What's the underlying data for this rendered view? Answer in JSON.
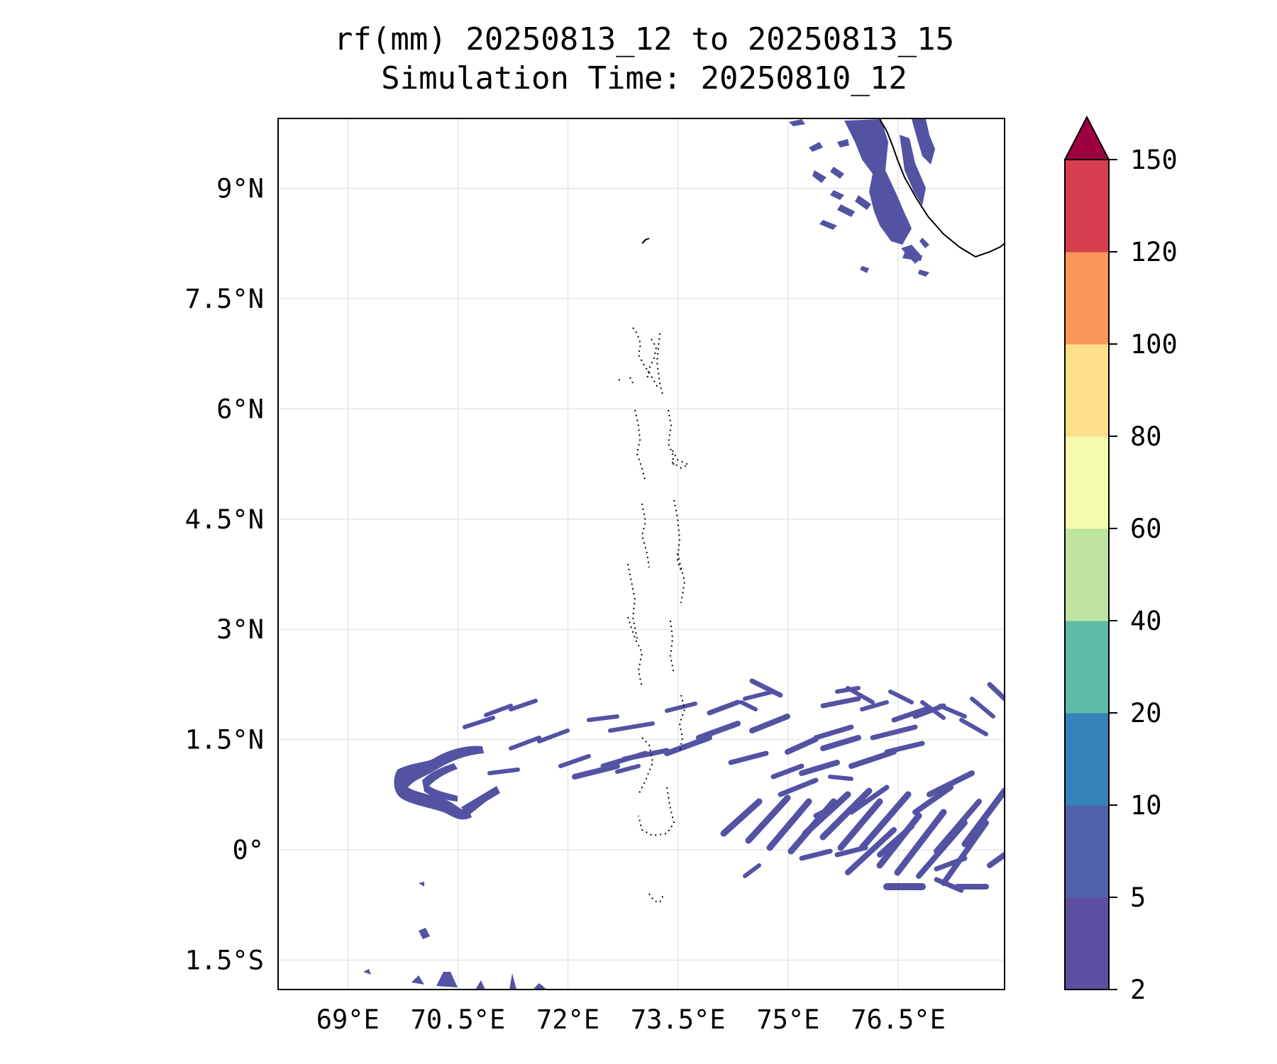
{
  "title": {
    "line1": "rf(mm) 20250813_12 to 20250813_15",
    "line2": "Simulation Time: 20250810_12"
  },
  "axes": {
    "x_ticks": [
      {
        "value": 69.0,
        "label": "69°E"
      },
      {
        "value": 70.5,
        "label": "70.5°E"
      },
      {
        "value": 72.0,
        "label": "72°E"
      },
      {
        "value": 73.5,
        "label": "73.5°E"
      },
      {
        "value": 75.0,
        "label": "75°E"
      },
      {
        "value": 76.5,
        "label": "76.5°E"
      }
    ],
    "y_ticks": [
      {
        "value": 9.0,
        "label": "9°N"
      },
      {
        "value": 7.5,
        "label": "7.5°N"
      },
      {
        "value": 6.0,
        "label": "6°N"
      },
      {
        "value": 4.5,
        "label": "4.5°N"
      },
      {
        "value": 3.0,
        "label": "3°N"
      },
      {
        "value": 1.5,
        "label": "1.5°N"
      },
      {
        "value": 0.0,
        "label": "0°"
      },
      {
        "value": -1.5,
        "label": "1.5°S"
      }
    ],
    "extent": {
      "lon": [
        68.05,
        77.95
      ],
      "lat": [
        -1.9,
        9.95
      ]
    },
    "grid": true
  },
  "colorbar": {
    "extend": "max",
    "levels": [
      {
        "value": 2,
        "label": "2"
      },
      {
        "value": 5,
        "label": "5"
      },
      {
        "value": 10,
        "label": "10"
      },
      {
        "value": 20,
        "label": "20"
      },
      {
        "value": 40,
        "label": "40"
      },
      {
        "value": 60,
        "label": "60"
      },
      {
        "value": 80,
        "label": "80"
      },
      {
        "value": 100,
        "label": "100"
      },
      {
        "value": 120,
        "label": "120"
      },
      {
        "value": 150,
        "label": "150"
      }
    ],
    "colors": [
      "#5e4fa2",
      "#4f61aa",
      "#3682ba",
      "#5fbaa8",
      "#bee4a0",
      "#f4fbae",
      "#fddf8b",
      "#f99858",
      "#d6404e"
    ],
    "extend_color": "#9e0142"
  },
  "rain_color": "#5352a3"
}
